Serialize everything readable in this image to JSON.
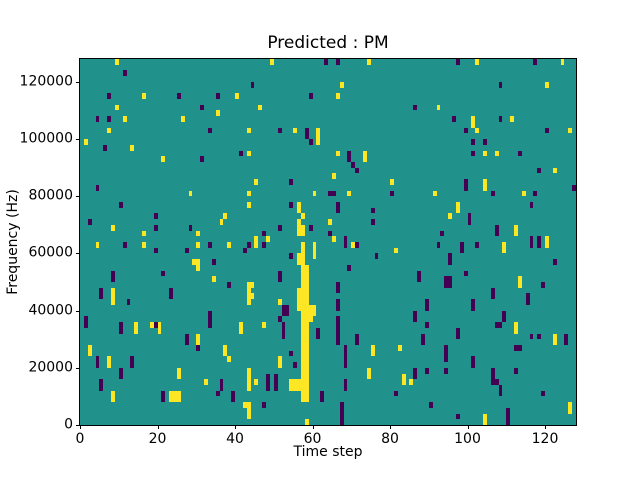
{
  "title": "Predicted : PM",
  "xlabel": "Time step",
  "ylabel": "Frequency (Hz)",
  "colors": {
    "figure_background": "#ffffff",
    "plot_background_mid": "#21918c",
    "cell_max_yellow": "#fde725",
    "cell_min_purple": "#440154",
    "spine": "#000000",
    "text": "#000000"
  },
  "axes": {
    "x": {
      "range": [
        0,
        128
      ],
      "ticks": [
        0,
        20,
        40,
        60,
        80,
        100,
        120
      ]
    },
    "y": {
      "range": [
        0,
        128000
      ],
      "ticks": [
        0,
        20000,
        40000,
        60000,
        80000,
        100000,
        120000
      ]
    }
  },
  "chart_data": {
    "type": "heatmap",
    "title": "Predicted : PM",
    "xlabel": "Time step",
    "ylabel": "Frequency (Hz)",
    "colormap": "viridis",
    "grid_cols": 128,
    "grid_rows": 64,
    "x_range": [
      0,
      128
    ],
    "y_range_hz": [
      0,
      128000
    ],
    "legend_position": "none",
    "grid": false,
    "cell_row_origin": "top (row 0 = highest frequency bin, ~2000 Hz per row)",
    "background_value": "mid (teal) fills all cells not listed below",
    "cells_max": [
      [
        9,
        0
      ],
      [
        49,
        0
      ],
      [
        74,
        0
      ],
      [
        102,
        0
      ],
      [
        124,
        0
      ],
      [
        67,
        4
      ],
      [
        120,
        4
      ],
      [
        16,
        6
      ],
      [
        40,
        6
      ],
      [
        66,
        6
      ],
      [
        9,
        8
      ],
      [
        46,
        8
      ],
      [
        92,
        8
      ],
      [
        35,
        9
      ],
      [
        11,
        10
      ],
      [
        26,
        10
      ],
      [
        101,
        10
      ],
      [
        111,
        10
      ],
      [
        101,
        11
      ],
      [
        7,
        12
      ],
      [
        43,
        12
      ],
      [
        55,
        12
      ],
      [
        61,
        12
      ],
      [
        102,
        12
      ],
      [
        126,
        12
      ],
      [
        61,
        13
      ],
      [
        1,
        14
      ],
      [
        61,
        14
      ],
      [
        13,
        15
      ],
      [
        43,
        16
      ],
      [
        66,
        16
      ],
      [
        73,
        16
      ],
      [
        104,
        16
      ],
      [
        107,
        16
      ],
      [
        21,
        17
      ],
      [
        73,
        17
      ],
      [
        122,
        19
      ],
      [
        65,
        20
      ],
      [
        45,
        21
      ],
      [
        80,
        21
      ],
      [
        104,
        21
      ],
      [
        104,
        22
      ],
      [
        28,
        23
      ],
      [
        43,
        23
      ],
      [
        60,
        23
      ],
      [
        69,
        23
      ],
      [
        91,
        23
      ],
      [
        114,
        23
      ],
      [
        43,
        25
      ],
      [
        56,
        25
      ],
      [
        97,
        25
      ],
      [
        56,
        26
      ],
      [
        97,
        26
      ],
      [
        37,
        27
      ],
      [
        57,
        27
      ],
      [
        95,
        27
      ],
      [
        36,
        28
      ],
      [
        56,
        28
      ],
      [
        64,
        28
      ],
      [
        8,
        29
      ],
      [
        56,
        29
      ],
      [
        57,
        29
      ],
      [
        112,
        29
      ],
      [
        16,
        30
      ],
      [
        30,
        30
      ],
      [
        56,
        30
      ],
      [
        57,
        30
      ],
      [
        112,
        30
      ],
      [
        45,
        31
      ],
      [
        48,
        31
      ],
      [
        65,
        31
      ],
      [
        120,
        31
      ],
      [
        4,
        32
      ],
      [
        16,
        32
      ],
      [
        30,
        32
      ],
      [
        38,
        32
      ],
      [
        45,
        32
      ],
      [
        57,
        32
      ],
      [
        60,
        32
      ],
      [
        70,
        32
      ],
      [
        109,
        32
      ],
      [
        120,
        32
      ],
      [
        57,
        33
      ],
      [
        60,
        33
      ],
      [
        81,
        33
      ],
      [
        109,
        33
      ],
      [
        56,
        34
      ],
      [
        57,
        34
      ],
      [
        60,
        34
      ],
      [
        29,
        35
      ],
      [
        30,
        35
      ],
      [
        56,
        35
      ],
      [
        57,
        35
      ],
      [
        30,
        36
      ],
      [
        57,
        36
      ],
      [
        58,
        36
      ],
      [
        57,
        37
      ],
      [
        58,
        37
      ],
      [
        34,
        38
      ],
      [
        57,
        38
      ],
      [
        58,
        38
      ],
      [
        113,
        38
      ],
      [
        43,
        39
      ],
      [
        44,
        39
      ],
      [
        57,
        39
      ],
      [
        58,
        39
      ],
      [
        113,
        39
      ],
      [
        8,
        40
      ],
      [
        43,
        40
      ],
      [
        56,
        40
      ],
      [
        57,
        40
      ],
      [
        58,
        40
      ],
      [
        8,
        41
      ],
      [
        43,
        41
      ],
      [
        44,
        41
      ],
      [
        56,
        41
      ],
      [
        57,
        41
      ],
      [
        58,
        41
      ],
      [
        8,
        42
      ],
      [
        43,
        42
      ],
      [
        51,
        42
      ],
      [
        56,
        42
      ],
      [
        57,
        42
      ],
      [
        58,
        42
      ],
      [
        56,
        43
      ],
      [
        57,
        43
      ],
      [
        58,
        43
      ],
      [
        59,
        43
      ],
      [
        60,
        43
      ],
      [
        57,
        44
      ],
      [
        58,
        44
      ],
      [
        59,
        44
      ],
      [
        60,
        44
      ],
      [
        57,
        45
      ],
      [
        58,
        45
      ],
      [
        59,
        45
      ],
      [
        14,
        46
      ],
      [
        18,
        46
      ],
      [
        20,
        46
      ],
      [
        41,
        46
      ],
      [
        47,
        46
      ],
      [
        57,
        46
      ],
      [
        58,
        46
      ],
      [
        112,
        46
      ],
      [
        14,
        47
      ],
      [
        20,
        47
      ],
      [
        41,
        47
      ],
      [
        57,
        47
      ],
      [
        58,
        47
      ],
      [
        112,
        47
      ],
      [
        30,
        48
      ],
      [
        57,
        48
      ],
      [
        58,
        48
      ],
      [
        122,
        48
      ],
      [
        30,
        49
      ],
      [
        57,
        49
      ],
      [
        58,
        49
      ],
      [
        122,
        49
      ],
      [
        2,
        50
      ],
      [
        37,
        50
      ],
      [
        57,
        50
      ],
      [
        58,
        50
      ],
      [
        75,
        50
      ],
      [
        82,
        50
      ],
      [
        2,
        51
      ],
      [
        37,
        51
      ],
      [
        57,
        51
      ],
      [
        58,
        51
      ],
      [
        75,
        51
      ],
      [
        7,
        52
      ],
      [
        38,
        52
      ],
      [
        51,
        52
      ],
      [
        57,
        52
      ],
      [
        58,
        52
      ],
      [
        7,
        53
      ],
      [
        51,
        53
      ],
      [
        57,
        53
      ],
      [
        58,
        53
      ],
      [
        25,
        54
      ],
      [
        43,
        54
      ],
      [
        57,
        54
      ],
      [
        58,
        54
      ],
      [
        74,
        54
      ],
      [
        25,
        55
      ],
      [
        43,
        55
      ],
      [
        57,
        55
      ],
      [
        58,
        55
      ],
      [
        74,
        55
      ],
      [
        83,
        55
      ],
      [
        32,
        56
      ],
      [
        43,
        56
      ],
      [
        45,
        56
      ],
      [
        54,
        56
      ],
      [
        55,
        56
      ],
      [
        56,
        56
      ],
      [
        57,
        56
      ],
      [
        58,
        56
      ],
      [
        83,
        56
      ],
      [
        85,
        56
      ],
      [
        43,
        57
      ],
      [
        54,
        57
      ],
      [
        55,
        57
      ],
      [
        56,
        57
      ],
      [
        57,
        57
      ],
      [
        58,
        57
      ],
      [
        8,
        58
      ],
      [
        23,
        58
      ],
      [
        24,
        58
      ],
      [
        25,
        58
      ],
      [
        57,
        58
      ],
      [
        58,
        58
      ],
      [
        8,
        59
      ],
      [
        23,
        59
      ],
      [
        24,
        59
      ],
      [
        25,
        59
      ],
      [
        57,
        59
      ],
      [
        58,
        59
      ],
      [
        42,
        60
      ],
      [
        43,
        60
      ],
      [
        126,
        60
      ],
      [
        43,
        61
      ],
      [
        126,
        61
      ],
      [
        43,
        62
      ],
      [
        104,
        62
      ],
      [
        58,
        63
      ],
      [
        104,
        63
      ]
    ],
    "cells_min": [
      [
        63,
        0
      ],
      [
        66,
        0
      ],
      [
        97,
        0
      ],
      [
        117,
        0
      ],
      [
        11,
        2
      ],
      [
        44,
        4
      ],
      [
        108,
        4
      ],
      [
        7,
        6
      ],
      [
        25,
        6
      ],
      [
        35,
        6
      ],
      [
        59,
        6
      ],
      [
        31,
        8
      ],
      [
        86,
        8
      ],
      [
        4,
        10
      ],
      [
        7,
        10
      ],
      [
        96,
        10
      ],
      [
        108,
        10
      ],
      [
        33,
        12
      ],
      [
        51,
        12
      ],
      [
        58,
        12
      ],
      [
        99,
        12
      ],
      [
        120,
        12
      ],
      [
        58,
        13
      ],
      [
        59,
        14
      ],
      [
        101,
        14
      ],
      [
        104,
        14
      ],
      [
        6,
        15
      ],
      [
        41,
        16
      ],
      [
        69,
        16
      ],
      [
        101,
        16
      ],
      [
        113,
        16
      ],
      [
        31,
        17
      ],
      [
        69,
        17
      ],
      [
        70,
        18
      ],
      [
        71,
        19
      ],
      [
        118,
        19
      ],
      [
        54,
        21
      ],
      [
        99,
        21
      ],
      [
        4,
        22
      ],
      [
        99,
        22
      ],
      [
        127,
        22
      ],
      [
        64,
        23
      ],
      [
        65,
        23
      ],
      [
        80,
        23
      ],
      [
        106,
        23
      ],
      [
        117,
        23
      ],
      [
        10,
        25
      ],
      [
        54,
        25
      ],
      [
        66,
        25
      ],
      [
        116,
        25
      ],
      [
        66,
        26
      ],
      [
        75,
        26
      ],
      [
        19,
        27
      ],
      [
        100,
        27
      ],
      [
        2,
        28
      ],
      [
        75,
        28
      ],
      [
        100,
        28
      ],
      [
        19,
        29
      ],
      [
        28,
        29
      ],
      [
        51,
        29
      ],
      [
        59,
        29
      ],
      [
        107,
        29
      ],
      [
        47,
        30
      ],
      [
        64,
        30
      ],
      [
        93,
        30
      ],
      [
        107,
        30
      ],
      [
        68,
        31
      ],
      [
        116,
        31
      ],
      [
        118,
        31
      ],
      [
        11,
        32
      ],
      [
        33,
        32
      ],
      [
        43,
        32
      ],
      [
        47,
        32
      ],
      [
        68,
        32
      ],
      [
        71,
        32
      ],
      [
        92,
        32
      ],
      [
        98,
        32
      ],
      [
        102,
        32
      ],
      [
        116,
        32
      ],
      [
        118,
        32
      ],
      [
        19,
        33
      ],
      [
        27,
        33
      ],
      [
        42,
        33
      ],
      [
        98,
        33
      ],
      [
        54,
        34
      ],
      [
        76,
        34
      ],
      [
        95,
        34
      ],
      [
        34,
        35
      ],
      [
        95,
        35
      ],
      [
        122,
        35
      ],
      [
        69,
        36
      ],
      [
        8,
        37
      ],
      [
        21,
        37
      ],
      [
        51,
        37
      ],
      [
        87,
        37
      ],
      [
        99,
        37
      ],
      [
        8,
        38
      ],
      [
        51,
        38
      ],
      [
        87,
        38
      ],
      [
        94,
        38
      ],
      [
        95,
        38
      ],
      [
        38,
        39
      ],
      [
        66,
        39
      ],
      [
        94,
        39
      ],
      [
        95,
        39
      ],
      [
        119,
        39
      ],
      [
        5,
        40
      ],
      [
        23,
        40
      ],
      [
        66,
        40
      ],
      [
        106,
        40
      ],
      [
        5,
        41
      ],
      [
        23,
        41
      ],
      [
        106,
        41
      ],
      [
        115,
        41
      ],
      [
        12,
        42
      ],
      [
        66,
        42
      ],
      [
        89,
        42
      ],
      [
        101,
        42
      ],
      [
        115,
        42
      ],
      [
        52,
        43
      ],
      [
        53,
        43
      ],
      [
        66,
        43
      ],
      [
        89,
        43
      ],
      [
        101,
        43
      ],
      [
        33,
        44
      ],
      [
        52,
        44
      ],
      [
        53,
        44
      ],
      [
        86,
        44
      ],
      [
        109,
        44
      ],
      [
        1,
        45
      ],
      [
        33,
        45
      ],
      [
        51,
        45
      ],
      [
        66,
        45
      ],
      [
        86,
        45
      ],
      [
        109,
        45
      ],
      [
        1,
        46
      ],
      [
        10,
        46
      ],
      [
        19,
        46
      ],
      [
        33,
        46
      ],
      [
        52,
        46
      ],
      [
        66,
        46
      ],
      [
        89,
        46
      ],
      [
        107,
        46
      ],
      [
        108,
        46
      ],
      [
        10,
        47
      ],
      [
        52,
        47
      ],
      [
        61,
        47
      ],
      [
        66,
        47
      ],
      [
        97,
        47
      ],
      [
        27,
        48
      ],
      [
        52,
        48
      ],
      [
        61,
        48
      ],
      [
        66,
        48
      ],
      [
        71,
        48
      ],
      [
        88,
        48
      ],
      [
        97,
        48
      ],
      [
        116,
        48
      ],
      [
        118,
        48
      ],
      [
        125,
        48
      ],
      [
        27,
        49
      ],
      [
        66,
        49
      ],
      [
        71,
        49
      ],
      [
        88,
        49
      ],
      [
        125,
        49
      ],
      [
        30,
        50
      ],
      [
        68,
        50
      ],
      [
        94,
        50
      ],
      [
        112,
        50
      ],
      [
        113,
        50
      ],
      [
        54,
        51
      ],
      [
        68,
        51
      ],
      [
        94,
        51
      ],
      [
        4,
        52
      ],
      [
        13,
        52
      ],
      [
        68,
        52
      ],
      [
        94,
        52
      ],
      [
        101,
        52
      ],
      [
        4,
        53
      ],
      [
        13,
        53
      ],
      [
        55,
        53
      ],
      [
        68,
        53
      ],
      [
        101,
        53
      ],
      [
        10,
        54
      ],
      [
        86,
        54
      ],
      [
        89,
        54
      ],
      [
        94,
        54
      ],
      [
        106,
        54
      ],
      [
        112,
        54
      ],
      [
        10,
        55
      ],
      [
        48,
        55
      ],
      [
        50,
        55
      ],
      [
        86,
        55
      ],
      [
        106,
        55
      ],
      [
        5,
        56
      ],
      [
        36,
        56
      ],
      [
        48,
        56
      ],
      [
        50,
        56
      ],
      [
        68,
        56
      ],
      [
        106,
        56
      ],
      [
        107,
        56
      ],
      [
        5,
        57
      ],
      [
        36,
        57
      ],
      [
        48,
        57
      ],
      [
        50,
        57
      ],
      [
        68,
        57
      ],
      [
        108,
        57
      ],
      [
        21,
        58
      ],
      [
        35,
        58
      ],
      [
        39,
        58
      ],
      [
        62,
        58
      ],
      [
        81,
        58
      ],
      [
        108,
        58
      ],
      [
        119,
        58
      ],
      [
        21,
        59
      ],
      [
        39,
        59
      ],
      [
        62,
        59
      ],
      [
        47,
        60
      ],
      [
        67,
        60
      ],
      [
        90,
        60
      ],
      [
        67,
        61
      ],
      [
        110,
        61
      ],
      [
        67,
        62
      ],
      [
        97,
        62
      ],
      [
        110,
        62
      ],
      [
        67,
        63
      ],
      [
        110,
        63
      ]
    ]
  }
}
